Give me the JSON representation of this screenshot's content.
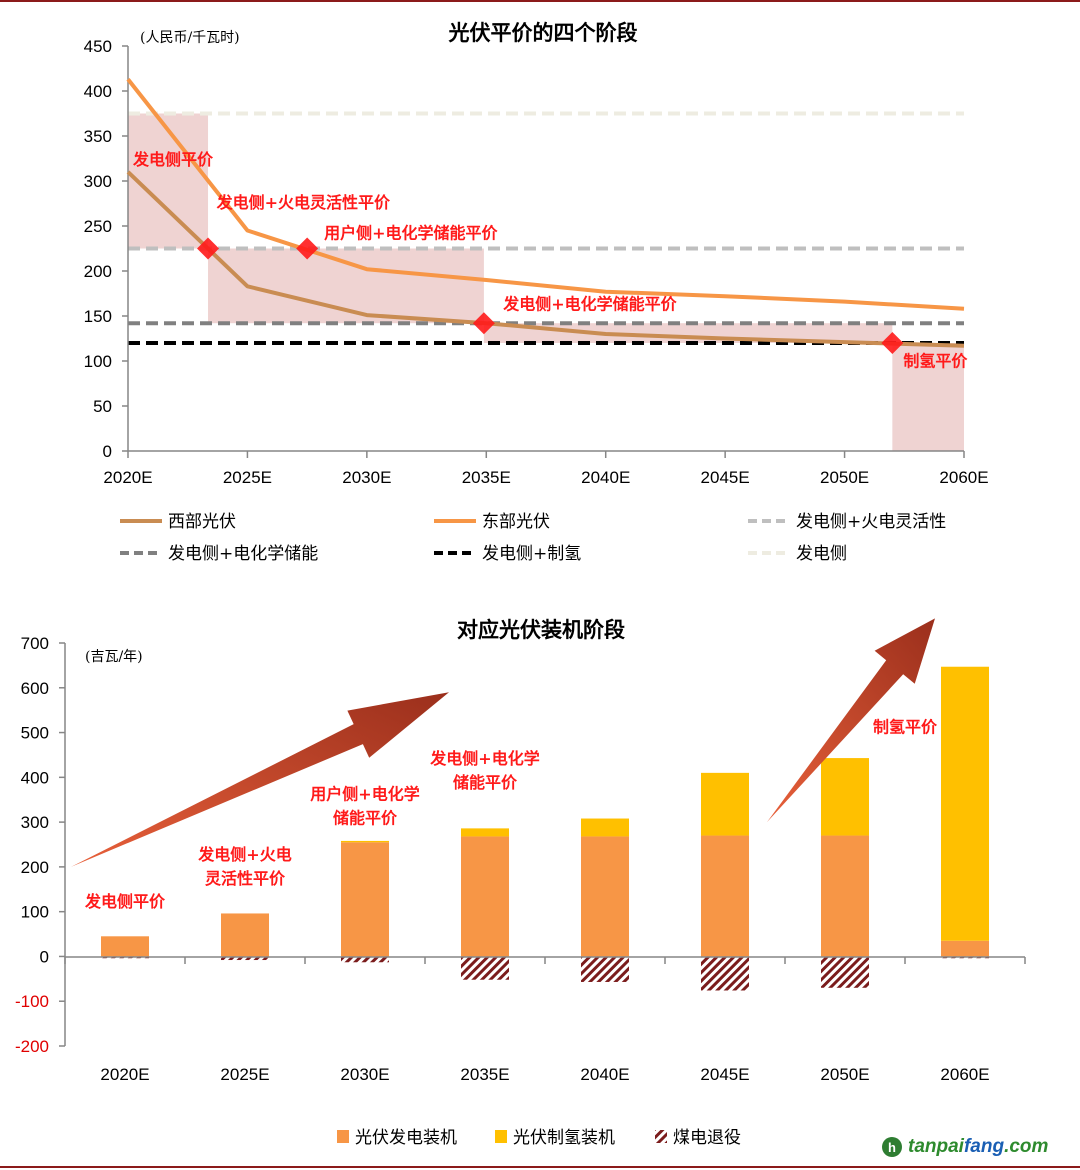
{
  "chart_data": [
    {
      "type": "line",
      "title": "光伏平价的四个阶段",
      "unit_label": "(人民币/千瓦时)",
      "categories": [
        "2020E",
        "2025E",
        "2030E",
        "2035E",
        "2040E",
        "2045E",
        "2050E",
        "2060E"
      ],
      "ylim": [
        0,
        450
      ],
      "yticks": [
        0,
        50,
        100,
        150,
        200,
        250,
        300,
        350,
        400,
        450
      ],
      "xlabel": "",
      "ylabel": "",
      "grid": false,
      "legend_position": "bottom",
      "series": [
        {
          "name": "西部光伏",
          "style": "solid",
          "color": "#c98c52",
          "values": [
            310,
            183,
            151,
            142,
            130,
            125,
            121,
            117
          ]
        },
        {
          "name": "东部光伏",
          "style": "solid",
          "color": "#f79646",
          "values": [
            413,
            245,
            202,
            190,
            177,
            172,
            166,
            158
          ]
        }
      ],
      "reference_lines": [
        {
          "name": "发电侧+火电灵活性",
          "value": 225,
          "color": "#bfbfbf"
        },
        {
          "name": "发电侧+电化学储能",
          "value": 142,
          "color": "#808080"
        },
        {
          "name": "发电侧+制氢",
          "value": 120,
          "color": "#000000"
        },
        {
          "name": "发电侧",
          "value": 375,
          "color": "#eeece1"
        }
      ],
      "legend": [
        "西部光伏",
        "东部光伏",
        "发电侧+火电灵活性",
        "发电侧+电化学储能",
        "发电侧+制氢",
        "发电侧"
      ],
      "shaded_regions": [
        {
          "x_from": 0.0,
          "x_to": 0.67,
          "y_from": 225,
          "y_to": 375
        },
        {
          "x_from": 0.67,
          "x_to": 2.98,
          "y_from": 142,
          "y_to": 225
        },
        {
          "x_from": 2.98,
          "x_to": 6.4,
          "y_from": 120,
          "y_to": 142
        },
        {
          "x_from": 6.4,
          "x_to": 7.0,
          "y_from": 0,
          "y_to": 120
        }
      ],
      "markers": [
        {
          "x": 0.67,
          "y": 225
        },
        {
          "x": 1.5,
          "y": 225
        },
        {
          "x": 2.98,
          "y": 142
        },
        {
          "x": 6.4,
          "y": 120
        }
      ],
      "annotations": [
        {
          "text": "发电侧平价",
          "x": 0.0,
          "y": 318
        },
        {
          "text": "发电侧+火电灵活性平价",
          "x": 0.7,
          "y": 270
        },
        {
          "text": "用户侧+电化学储能平价",
          "x": 1.6,
          "y": 236
        },
        {
          "text": "发电侧+电化学储能平价",
          "x": 3.1,
          "y": 157
        },
        {
          "text": "制氢平价",
          "x": 6.45,
          "y": 94
        }
      ]
    },
    {
      "type": "bar",
      "stacked": true,
      "title": "对应光伏装机阶段",
      "unit_label": "(吉瓦/年)",
      "categories": [
        "2020E",
        "2025E",
        "2030E",
        "2035E",
        "2040E",
        "2045E",
        "2050E",
        "2060E"
      ],
      "ylim": [
        -200,
        700
      ],
      "yticks": [
        -200,
        -100,
        0,
        100,
        200,
        300,
        400,
        500,
        600,
        700
      ],
      "xlabel": "",
      "ylabel": "",
      "grid": false,
      "legend_position": "bottom",
      "series": [
        {
          "name": "光伏发电装机",
          "color": "#f79646",
          "pattern": "solid",
          "values": [
            45,
            96,
            255,
            268,
            268,
            270,
            270,
            35
          ]
        },
        {
          "name": "光伏制氢装机",
          "color": "#ffc000",
          "pattern": "solid",
          "values": [
            0,
            0,
            3,
            18,
            40,
            140,
            173,
            612
          ]
        },
        {
          "name": "煤电退役",
          "color": "#7b1c1c",
          "pattern": "hatch",
          "values": [
            -4,
            -8,
            -13,
            -52,
            -57,
            -76,
            -70,
            -4
          ]
        }
      ],
      "annotations": [
        {
          "text": [
            "发电侧平价"
          ],
          "x": 0,
          "y": 110
        },
        {
          "text": [
            "发电侧+火电",
            "灵活性平价"
          ],
          "x": 1,
          "y": 215
        },
        {
          "text": [
            "用户侧+电化学",
            "储能平价"
          ],
          "x": 2,
          "y": 350
        },
        {
          "text": [
            "发电侧+电化学",
            "储能平价"
          ],
          "x": 3,
          "y": 430
        },
        {
          "text": [
            "制氢平价"
          ],
          "x": 6.5,
          "y": 500
        }
      ],
      "arrows": [
        {
          "from": [
            -0.45,
            200
          ],
          "to": [
            2.7,
            590
          ]
        },
        {
          "from": [
            5.35,
            300
          ],
          "to": [
            6.75,
            755
          ]
        }
      ]
    }
  ],
  "watermark": {
    "mark": "h",
    "text_a": "tanpai",
    "text_b": "fang",
    "text_c": ".com"
  }
}
